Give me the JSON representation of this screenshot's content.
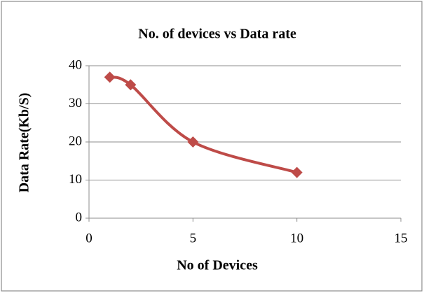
{
  "chart_data": {
    "type": "line",
    "title": "No. of devices vs Data rate",
    "x_label": "No of Devices",
    "y_label": "Data Rate(Kb/S)",
    "x": [
      1,
      2,
      5,
      10
    ],
    "values": [
      37,
      35,
      20,
      12
    ],
    "color": "#be4b48",
    "xlim": [
      0,
      15
    ],
    "xticks": [
      0,
      5,
      10,
      15
    ],
    "ylim": [
      0,
      40
    ],
    "yticks": [
      0,
      10,
      20,
      30,
      40
    ],
    "grid": true,
    "smooth": true,
    "marker": "diamond"
  }
}
